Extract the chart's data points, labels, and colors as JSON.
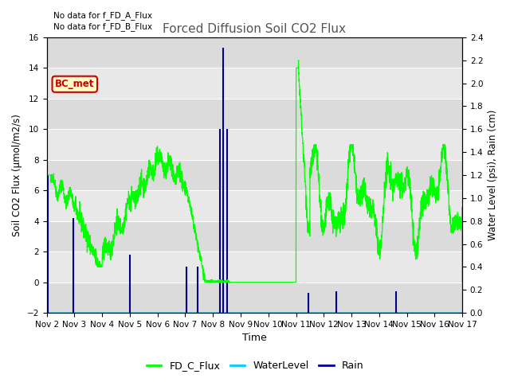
{
  "title": "Forced Diffusion Soil CO2 Flux",
  "ylabel_left": "Soil CO2 Flux (μmol/m2/s)",
  "ylabel_right": "Water Level (psi), Rain (cm)",
  "xlabel": "Time",
  "text_no_data_1": "No data for f_FD_A_Flux",
  "text_no_data_2": "No data for f_FD_B_Flux",
  "bc_met_label": "BC_met",
  "ylim_left": [
    -2,
    16
  ],
  "ylim_right": [
    0.0,
    2.4
  ],
  "flux_color": "#00ff00",
  "water_color": "#00ccff",
  "rain_color": "#000088",
  "plot_bg_color": "#e8e8e8",
  "plot_bg_color2": "#d8d8d8",
  "x_tick_labels": [
    "Nov 2",
    "Nov 3",
    "Nov 4",
    "Nov 5",
    "Nov 6",
    "Nov 7",
    "Nov 8",
    "Nov 9",
    "Nov 10",
    "Nov 11",
    "Nov 12",
    "Nov 13",
    "Nov 14",
    "Nov 15",
    "Nov 16",
    "Nov 17"
  ],
  "x_ticks": [
    0,
    1,
    2,
    3,
    4,
    5,
    6,
    7,
    8,
    9,
    10,
    11,
    12,
    13,
    14,
    15
  ],
  "rain_times": [
    0.05,
    0.95,
    3.0,
    5.05,
    5.45,
    6.25,
    6.38,
    6.52,
    9.45,
    10.45,
    12.6
  ],
  "rain_heights": [
    7.0,
    4.2,
    1.8,
    1.0,
    1.0,
    10.0,
    15.3,
    10.0,
    -0.7,
    -0.6,
    -0.6
  ]
}
